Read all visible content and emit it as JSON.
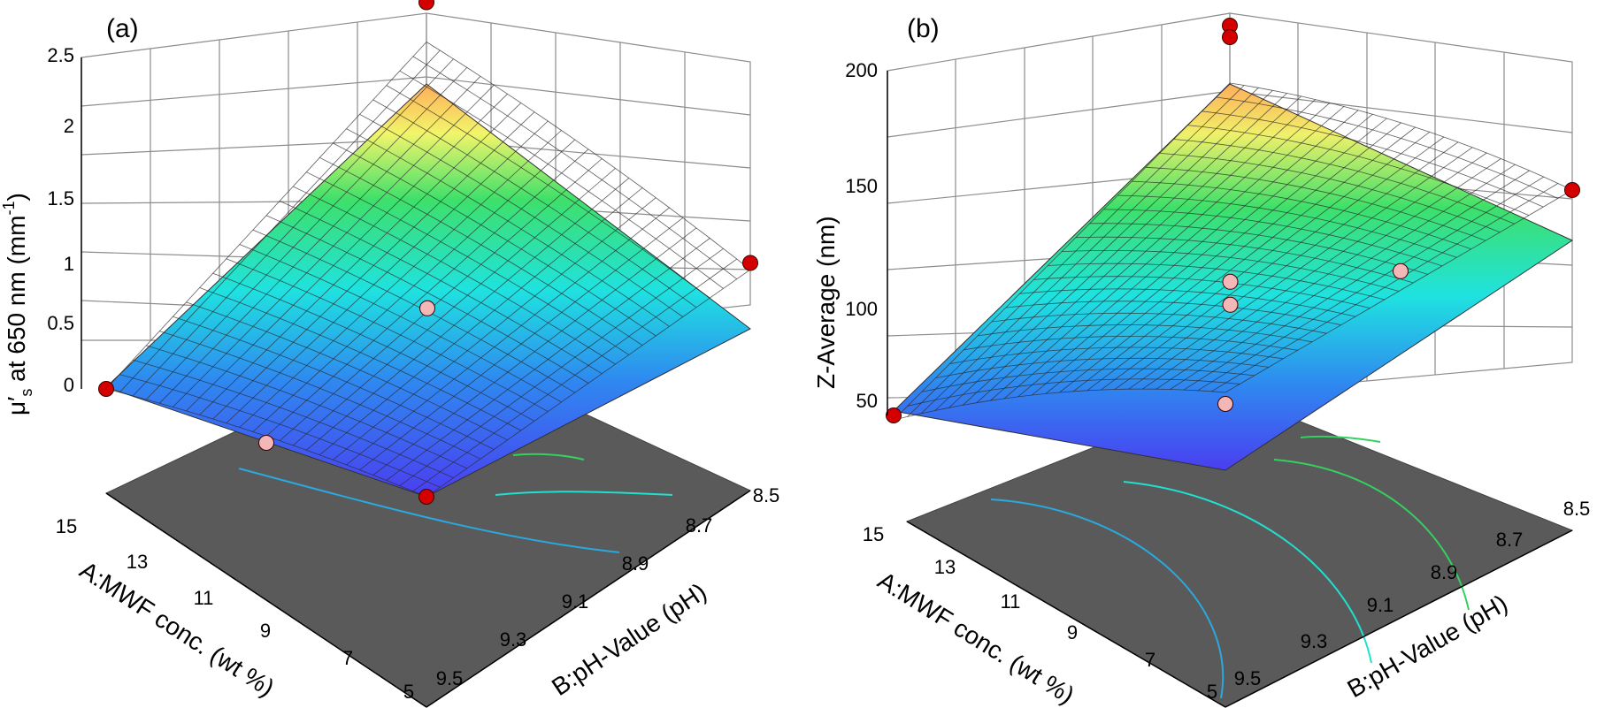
{
  "chart_data": [
    {
      "type": "surface3d",
      "panel_label": "(a)",
      "z_label_main": "μ",
      "z_label_prime": "′",
      "z_label_sub": "s",
      "z_label_rest": " at 650 nm (mm",
      "z_label_sup": "-1",
      "z_label_end": ")",
      "x_label": "A:MWF conc. (wt %)",
      "y_label": "B:pH-Value (pH)",
      "z_ticks": [
        "0",
        "0.5",
        "1",
        "1.5",
        "2",
        "2.5"
      ],
      "z_range": [
        0,
        2.5
      ],
      "x_ticks": [
        "15",
        "13",
        "11",
        "9",
        "7",
        "5"
      ],
      "y_ticks": [
        "9.5",
        "9.3",
        "9.1",
        "8.9",
        "8.7",
        "8.5"
      ],
      "surface_corners": {
        "A15_pH9.5": 0.0,
        "A5_pH9.5": 0.0,
        "A5_pH8.5": 0.5,
        "A15_pH8.5": 2.25
      },
      "design_points": [
        {
          "A": 15,
          "pH": 9.5,
          "value": 0.0
        },
        {
          "A": 15,
          "pH": 8.5,
          "value": 2.55
        },
        {
          "A": 10,
          "pH": 9.0,
          "value": 0.62
        },
        {
          "A": 5,
          "pH": 8.5,
          "value": 0.55
        },
        {
          "A": 5,
          "pH": 9.5,
          "value": 0.0
        },
        {
          "A": 10,
          "pH": 9.5,
          "value": 0.0
        }
      ]
    },
    {
      "type": "surface3d",
      "panel_label": "(b)",
      "z_label": "Z-Average (nm)",
      "x_label": "A:MWF conc. (wt %)",
      "y_label": "B:pH-Value (pH)",
      "z_ticks": [
        "50",
        "100",
        "150",
        "200"
      ],
      "z_range": [
        50,
        200
      ],
      "x_ticks": [
        "15",
        "13",
        "11",
        "9",
        "7",
        "5"
      ],
      "y_ticks": [
        "9.5",
        "9.3",
        "9.1",
        "8.9",
        "8.7",
        "8.5"
      ],
      "surface_corners": {
        "A15_pH9.5": 48,
        "A5_pH9.5": 60,
        "A5_pH8.5": 125,
        "A15_pH8.5": 185
      },
      "design_points": [
        {
          "A": 15,
          "pH": 9.5,
          "value": 50
        },
        {
          "A": 15,
          "pH": 8.5,
          "value": 210
        },
        {
          "A": 15,
          "pH": 8.5,
          "value": 205
        },
        {
          "A": 10,
          "pH": 9.0,
          "value": 100
        },
        {
          "A": 10,
          "pH": 9.0,
          "value": 90
        },
        {
          "A": 7.5,
          "pH": 8.75,
          "value": 98
        },
        {
          "A": 5,
          "pH": 8.5,
          "value": 125
        },
        {
          "A": 5,
          "pH": 9.5,
          "value": 55
        }
      ]
    }
  ]
}
